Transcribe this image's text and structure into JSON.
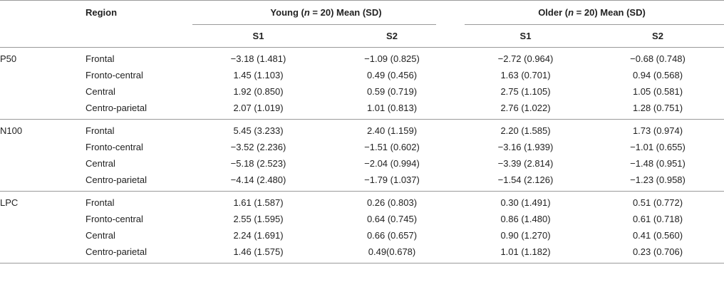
{
  "header": {
    "region_label": "Region",
    "young_prefix": "Young (",
    "young_n": "n",
    "young_suffix": " = 20) Mean (SD)",
    "older_prefix": "Older (",
    "older_n": "n",
    "older_suffix": " = 20) Mean (SD)",
    "s1": "S1",
    "s2": "S2"
  },
  "blocks": [
    {
      "component": "P50",
      "rows": [
        {
          "region": "Frontal",
          "y_s1": "−3.18 (1.481)",
          "y_s2": "−1.09 (0.825)",
          "o_s1": "−2.72 (0.964)",
          "o_s2": "−0.68 (0.748)"
        },
        {
          "region": "Fronto-central",
          "y_s1": "1.45 (1.103)",
          "y_s2": "0.49 (0.456)",
          "o_s1": "1.63 (0.701)",
          "o_s2": "0.94 (0.568)"
        },
        {
          "region": "Central",
          "y_s1": "1.92 (0.850)",
          "y_s2": "0.59 (0.719)",
          "o_s1": "2.75 (1.105)",
          "o_s2": "1.05 (0.581)"
        },
        {
          "region": "Centro-parietal",
          "y_s1": "2.07 (1.019)",
          "y_s2": "1.01 (0.813)",
          "o_s1": "2.76 (1.022)",
          "o_s2": "1.28 (0.751)"
        }
      ]
    },
    {
      "component": "N100",
      "rows": [
        {
          "region": "Frontal",
          "y_s1": "5.45 (3.233)",
          "y_s2": "2.40 (1.159)",
          "o_s1": "2.20 (1.585)",
          "o_s2": "1.73 (0.974)"
        },
        {
          "region": "Fronto-central",
          "y_s1": "−3.52 (2.236)",
          "y_s2": "−1.51 (0.602)",
          "o_s1": "−3.16 (1.939)",
          "o_s2": "−1.01 (0.655)"
        },
        {
          "region": "Central",
          "y_s1": "−5.18 (2.523)",
          "y_s2": "−2.04 (0.994)",
          "o_s1": "−3.39 (2.814)",
          "o_s2": "−1.48 (0.951)"
        },
        {
          "region": "Centro-parietal",
          "y_s1": "−4.14 (2.480)",
          "y_s2": "−1.79 (1.037)",
          "o_s1": "−1.54 (2.126)",
          "o_s2": "−1.23 (0.958)"
        }
      ]
    },
    {
      "component": "LPC",
      "rows": [
        {
          "region": "Frontal",
          "y_s1": "1.61 (1.587)",
          "y_s2": "0.26 (0.803)",
          "o_s1": "0.30 (1.491)",
          "o_s2": "0.51 (0.772)"
        },
        {
          "region": "Fronto-central",
          "y_s1": "2.55 (1.595)",
          "y_s2": "0.64 (0.745)",
          "o_s1": "0.86 (1.480)",
          "o_s2": "0.61 (0.718)"
        },
        {
          "region": "Central",
          "y_s1": "2.24 (1.691)",
          "y_s2": "0.66 (0.657)",
          "o_s1": "0.90 (1.270)",
          "o_s2": "0.41 (0.560)"
        },
        {
          "region": "Centro-parietal",
          "y_s1": "1.46 (1.575)",
          "y_s2": "0.49(0.678)",
          "o_s1": "1.01 (1.182)",
          "o_s2": "0.23 (0.706)"
        }
      ]
    }
  ]
}
